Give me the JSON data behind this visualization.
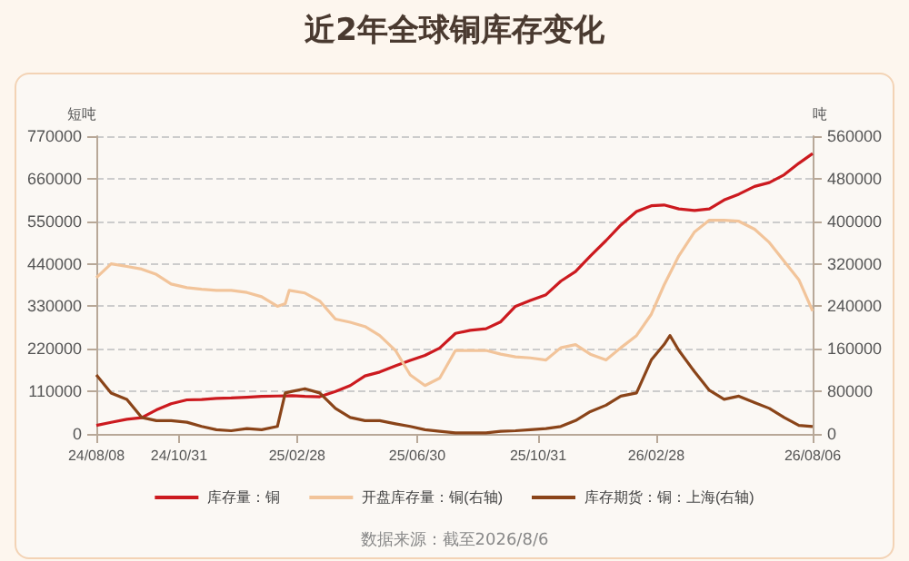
{
  "chart_data": {
    "type": "line",
    "title": "近2年全球铜库存变化",
    "ylabel": "短吨",
    "y2label": "吨",
    "xlim": [
      "2024-08-08",
      "2026-08-06"
    ],
    "xticks": [
      {
        "value": "2024-08-08",
        "label": "24/08/08"
      },
      {
        "value": "2024-10-31",
        "label": "24/10/31"
      },
      {
        "value": "2025-02-28",
        "label": "25/02/28"
      },
      {
        "value": "2025-06-30",
        "label": "25/06/30"
      },
      {
        "value": "2025-10-31",
        "label": "25/10/31"
      },
      {
        "value": "2026-02-28",
        "label": "26/02/28"
      },
      {
        "value": "2026-08-06",
        "label": "26/08/06"
      }
    ],
    "ylim": [
      0,
      770000
    ],
    "yticks": [
      0,
      110000,
      220000,
      330000,
      440000,
      550000,
      660000,
      770000
    ],
    "y2lim": [
      0,
      560000
    ],
    "y2ticks": [
      0,
      80000,
      160000,
      240000,
      320000,
      400000,
      480000,
      560000
    ],
    "grid": "y",
    "legend": "bottom",
    "marker": "none",
    "line_style": "solid",
    "series": [
      {
        "name": "库存量：铜",
        "color": "#cc1a1f",
        "x": [
          "2024-08-08",
          "2024-08-23",
          "2024-09-08",
          "2024-09-23",
          "2024-10-08",
          "2024-10-23",
          "2024-11-08",
          "2024-11-23",
          "2024-12-08",
          "2024-12-23",
          "2025-01-08",
          "2025-01-23",
          "2025-02-08",
          "2025-02-23",
          "2025-03-08",
          "2025-03-23",
          "2025-04-08",
          "2025-04-23",
          "2025-05-08",
          "2025-05-23",
          "2025-06-08",
          "2025-06-23",
          "2025-07-08",
          "2025-07-23",
          "2025-08-08",
          "2025-08-23",
          "2025-09-08",
          "2025-09-23",
          "2025-10-08",
          "2025-10-23",
          "2025-11-08",
          "2025-11-23",
          "2025-12-08",
          "2025-12-23",
          "2026-01-08",
          "2026-01-23",
          "2026-02-08",
          "2026-02-23",
          "2026-03-08",
          "2026-03-23",
          "2026-04-08",
          "2026-04-23",
          "2026-05-08",
          "2026-05-23",
          "2026-06-08",
          "2026-06-23",
          "2026-07-08",
          "2026-07-23",
          "2026-08-06"
        ],
        "values": [
          22000,
          30000,
          38000,
          42000,
          62000,
          78000,
          88000,
          89000,
          92000,
          93000,
          95000,
          97000,
          98000,
          99000,
          97000,
          96000,
          110000,
          125000,
          150000,
          160000,
          176000,
          190000,
          203000,
          222000,
          260000,
          268000,
          272000,
          290000,
          330000,
          345000,
          360000,
          395000,
          420000,
          460000,
          500000,
          540000,
          575000,
          590000,
          592000,
          582000,
          578000,
          582000,
          605000,
          620000,
          640000,
          650000,
          670000,
          700000,
          725000
        ]
      },
      {
        "name": "开盘库存量：铜(右轴)",
        "color": "#f2c49a",
        "axis": "y2",
        "x": [
          "2024-08-08",
          "2024-08-23",
          "2024-09-08",
          "2024-09-23",
          "2024-10-08",
          "2024-10-23",
          "2024-11-08",
          "2024-11-23",
          "2024-12-08",
          "2024-12-23",
          "2025-01-08",
          "2025-01-23",
          "2025-02-08",
          "2025-02-16",
          "2025-02-20",
          "2025-03-08",
          "2025-03-23",
          "2025-04-08",
          "2025-04-23",
          "2025-05-08",
          "2025-05-23",
          "2025-06-08",
          "2025-06-23",
          "2025-07-08",
          "2025-07-23",
          "2025-08-08",
          "2025-08-23",
          "2025-09-08",
          "2025-09-23",
          "2025-10-08",
          "2025-10-23",
          "2025-11-08",
          "2025-11-23",
          "2025-12-08",
          "2025-12-23",
          "2026-01-08",
          "2026-01-23",
          "2026-02-08",
          "2026-02-23",
          "2026-03-08",
          "2026-03-23",
          "2026-04-08",
          "2026-04-23",
          "2026-05-08",
          "2026-05-23",
          "2026-06-08",
          "2026-06-23",
          "2026-07-08",
          "2026-07-23",
          "2026-08-06"
        ],
        "values": [
          294000,
          320000,
          315000,
          310000,
          300000,
          282000,
          275000,
          272000,
          270000,
          270000,
          266000,
          258000,
          240000,
          245000,
          270000,
          265000,
          250000,
          216000,
          210000,
          202000,
          185000,
          157000,
          111000,
          91000,
          105000,
          157000,
          157000,
          157000,
          150000,
          145000,
          143000,
          139000,
          162000,
          168000,
          150000,
          139000,
          162000,
          185000,
          225000,
          280000,
          335000,
          380000,
          402000,
          402000,
          400000,
          385000,
          360000,
          325000,
          290000,
          231000
        ]
      },
      {
        "name": "库存期货：铜：上海(右轴)",
        "color": "#8a4419",
        "axis": "y2",
        "x": [
          "2024-08-08",
          "2024-08-23",
          "2024-09-08",
          "2024-09-23",
          "2024-10-08",
          "2024-10-23",
          "2024-11-08",
          "2024-11-23",
          "2024-12-08",
          "2024-12-23",
          "2025-01-08",
          "2025-01-23",
          "2025-02-08",
          "2025-02-16",
          "2025-02-23",
          "2025-03-08",
          "2025-03-23",
          "2025-04-08",
          "2025-04-23",
          "2025-05-08",
          "2025-05-23",
          "2025-06-08",
          "2025-06-23",
          "2025-07-08",
          "2025-07-23",
          "2025-08-08",
          "2025-08-23",
          "2025-09-08",
          "2025-09-23",
          "2025-10-08",
          "2025-10-23",
          "2025-11-08",
          "2025-11-23",
          "2025-12-08",
          "2025-12-23",
          "2026-01-08",
          "2026-01-23",
          "2026-02-08",
          "2026-02-23",
          "2026-03-08",
          "2026-03-14",
          "2026-03-23",
          "2026-04-08",
          "2026-04-23",
          "2026-05-08",
          "2026-05-23",
          "2026-06-08",
          "2026-06-23",
          "2026-07-08",
          "2026-07-23",
          "2026-08-06"
        ],
        "values": [
          111000,
          77000,
          65000,
          31000,
          25000,
          25000,
          22000,
          14000,
          8000,
          6000,
          10000,
          8000,
          14000,
          77000,
          80000,
          85000,
          77000,
          48000,
          31000,
          25000,
          25000,
          19000,
          14000,
          8000,
          5000,
          2000,
          2000,
          2000,
          5000,
          6000,
          8000,
          10000,
          14000,
          25000,
          42000,
          54000,
          71000,
          77000,
          139000,
          168000,
          185000,
          157000,
          117000,
          82000,
          65000,
          71000,
          59000,
          48000,
          31000,
          16000,
          14000
        ]
      }
    ],
    "annotations": [
      "数据来源：截至2026/8/6"
    ]
  }
}
